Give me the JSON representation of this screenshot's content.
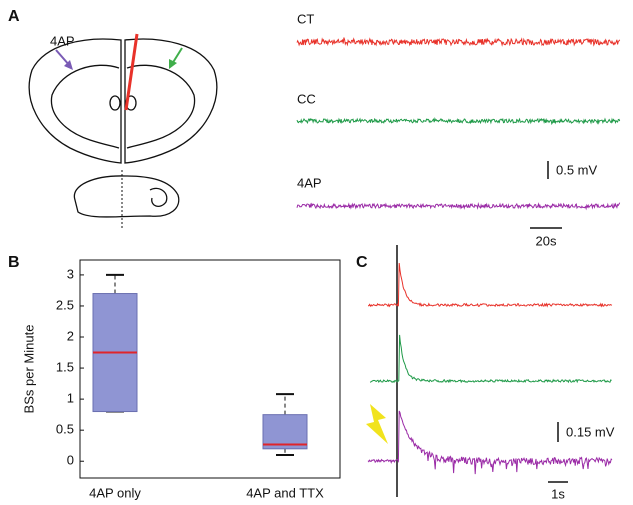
{
  "panels": {
    "a": "A",
    "b": "B",
    "c": "C"
  },
  "panel_a": {
    "injection_label": "4AP",
    "trace_labels": [
      "CT",
      "CC",
      "4AP"
    ],
    "trace_colors": [
      "#e8322a",
      "#1f9a48",
      "#9a2aa6"
    ],
    "scale_voltage": "0.5 mV",
    "scale_time": "20s"
  },
  "chart_data": {
    "type": "box",
    "ylabel": "BSs per Minute",
    "categories": [
      "4AP only",
      "4AP and TTX"
    ],
    "boxes": [
      {
        "min": 0.8,
        "q1": 0.8,
        "median": 1.75,
        "q3": 2.7,
        "max": 3
      },
      {
        "min": 0.1,
        "q1": 0.2,
        "median": 0.27,
        "q3": 0.75,
        "max": 1.08
      }
    ],
    "ylim": [
      -0.27,
      3.24
    ],
    "yticks": [
      0,
      0.5,
      1,
      1.5,
      2,
      2.5,
      3
    ],
    "color": "#8f95d3",
    "median_color": "#e0242a"
  },
  "panel_c": {
    "trace_colors": [
      "#e8322a",
      "#1f9a48",
      "#9a2aa6"
    ],
    "scale_voltage": "0.15 mV",
    "scale_time": "1s"
  }
}
